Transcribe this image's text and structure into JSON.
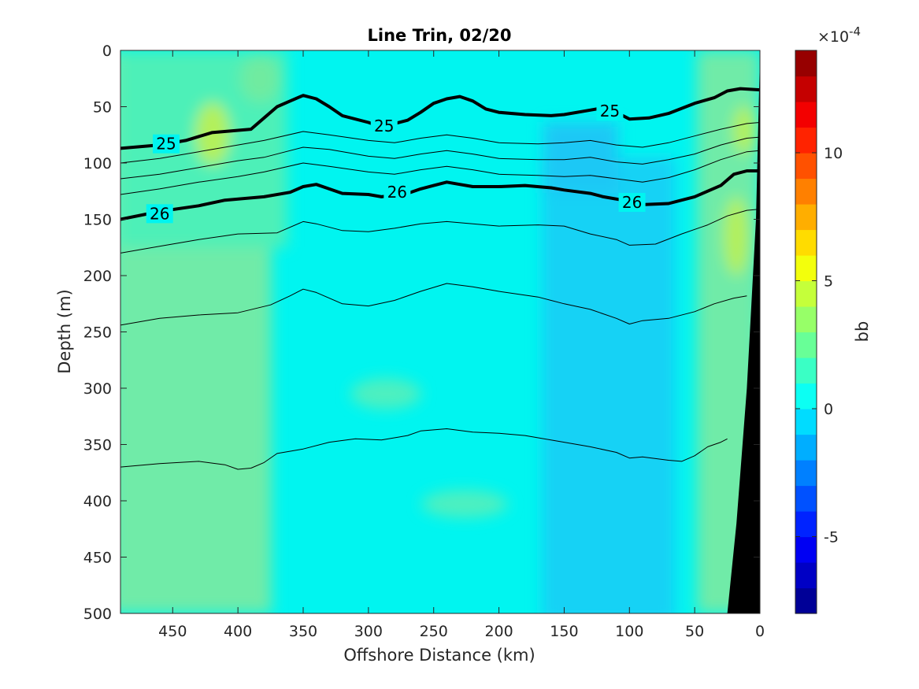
{
  "chart_data": {
    "type": "heatmap",
    "title": "Line Trin, 02/20",
    "xlabel": "Offshore Distance (km)",
    "ylabel": "Depth (m)",
    "x_reversed": true,
    "y_reversed": true,
    "xlim": [
      490,
      0
    ],
    "ylim": [
      0,
      500
    ],
    "xticks": [
      450,
      400,
      350,
      300,
      250,
      200,
      150,
      100,
      50,
      0
    ],
    "yticks": [
      0,
      50,
      100,
      150,
      200,
      250,
      300,
      350,
      400,
      450,
      500
    ],
    "grid": false,
    "colorbar": {
      "label": "bb",
      "exponent_label": "×10",
      "exponent_value": "-4",
      "range": [
        -8,
        14
      ],
      "ticks": [
        -5,
        0,
        5,
        10
      ],
      "levels": 22,
      "colormap": "jet"
    },
    "field_description": "backscatter bb anomaly: ~1-3 (green) offshore 490-370 km, ~0.5-1 (cyan) 370-170 km, ~-0.5 to -1 (light blue) 170-60 km, ~2-4 (green) nearshore 50-0 km; maximum ~4-5 near 420 km at 60-90 m",
    "contour_lines": [
      {
        "label": "25",
        "bold": true,
        "points": [
          [
            490,
            87
          ],
          [
            460,
            84
          ],
          [
            440,
            80
          ],
          [
            420,
            73
          ],
          [
            390,
            70
          ],
          [
            380,
            60
          ],
          [
            370,
            50
          ],
          [
            360,
            45
          ],
          [
            350,
            40
          ],
          [
            340,
            43
          ],
          [
            330,
            50
          ],
          [
            320,
            58
          ],
          [
            300,
            64
          ],
          [
            290,
            68
          ],
          [
            270,
            62
          ],
          [
            260,
            55
          ],
          [
            250,
            47
          ],
          [
            240,
            43
          ],
          [
            230,
            41
          ],
          [
            220,
            45
          ],
          [
            210,
            52
          ],
          [
            200,
            55
          ],
          [
            180,
            57
          ],
          [
            160,
            58
          ],
          [
            150,
            57
          ],
          [
            130,
            53
          ],
          [
            120,
            51
          ],
          [
            110,
            55
          ],
          [
            100,
            61
          ],
          [
            85,
            60
          ],
          [
            70,
            56
          ],
          [
            50,
            47
          ],
          [
            35,
            42
          ],
          [
            25,
            36
          ],
          [
            15,
            34
          ],
          [
            0,
            35
          ]
        ],
        "label_positions": [
          [
            455,
            83
          ],
          [
            288,
            67
          ],
          [
            115,
            54
          ]
        ]
      },
      {
        "label": "26",
        "bold": true,
        "points": [
          [
            490,
            150
          ],
          [
            460,
            143
          ],
          [
            430,
            138
          ],
          [
            410,
            133
          ],
          [
            380,
            130
          ],
          [
            360,
            126
          ],
          [
            350,
            121
          ],
          [
            340,
            119
          ],
          [
            330,
            123
          ],
          [
            320,
            127
          ],
          [
            300,
            128
          ],
          [
            290,
            130
          ],
          [
            270,
            127
          ],
          [
            260,
            123
          ],
          [
            250,
            120
          ],
          [
            240,
            117
          ],
          [
            230,
            119
          ],
          [
            220,
            121
          ],
          [
            200,
            121
          ],
          [
            180,
            120
          ],
          [
            160,
            122
          ],
          [
            150,
            124
          ],
          [
            130,
            127
          ],
          [
            120,
            130
          ],
          [
            105,
            133
          ],
          [
            90,
            137
          ],
          [
            70,
            136
          ],
          [
            50,
            130
          ],
          [
            30,
            120
          ],
          [
            20,
            110
          ],
          [
            10,
            107
          ],
          [
            0,
            107
          ]
        ],
        "label_positions": [
          [
            460,
            145
          ],
          [
            278,
            126
          ],
          [
            98,
            135
          ]
        ]
      },
      {
        "label": "",
        "bold": false,
        "points": [
          [
            490,
            100
          ],
          [
            460,
            96
          ],
          [
            430,
            90
          ],
          [
            400,
            84
          ],
          [
            380,
            80
          ],
          [
            350,
            72
          ],
          [
            330,
            75
          ],
          [
            300,
            80
          ],
          [
            280,
            82
          ],
          [
            260,
            78
          ],
          [
            240,
            75
          ],
          [
            220,
            78
          ],
          [
            200,
            82
          ],
          [
            170,
            83
          ],
          [
            150,
            82
          ],
          [
            130,
            80
          ],
          [
            110,
            84
          ],
          [
            90,
            86
          ],
          [
            70,
            82
          ],
          [
            50,
            76
          ],
          [
            30,
            70
          ],
          [
            10,
            65
          ],
          [
            0,
            64
          ]
        ]
      },
      {
        "label": "",
        "bold": false,
        "points": [
          [
            490,
            114
          ],
          [
            460,
            110
          ],
          [
            430,
            104
          ],
          [
            400,
            98
          ],
          [
            380,
            95
          ],
          [
            350,
            86
          ],
          [
            330,
            88
          ],
          [
            300,
            94
          ],
          [
            280,
            96
          ],
          [
            260,
            92
          ],
          [
            240,
            89
          ],
          [
            220,
            92
          ],
          [
            200,
            96
          ],
          [
            170,
            97
          ],
          [
            150,
            97
          ],
          [
            130,
            95
          ],
          [
            110,
            99
          ],
          [
            90,
            101
          ],
          [
            70,
            97
          ],
          [
            50,
            92
          ],
          [
            30,
            84
          ],
          [
            10,
            78
          ],
          [
            0,
            77
          ]
        ]
      },
      {
        "label": "",
        "bold": false,
        "points": [
          [
            490,
            128
          ],
          [
            460,
            123
          ],
          [
            430,
            117
          ],
          [
            400,
            112
          ],
          [
            380,
            108
          ],
          [
            350,
            100
          ],
          [
            330,
            103
          ],
          [
            300,
            108
          ],
          [
            280,
            110
          ],
          [
            260,
            106
          ],
          [
            240,
            103
          ],
          [
            220,
            106
          ],
          [
            200,
            110
          ],
          [
            170,
            111
          ],
          [
            150,
            112
          ],
          [
            130,
            111
          ],
          [
            110,
            114
          ],
          [
            90,
            117
          ],
          [
            70,
            113
          ],
          [
            50,
            106
          ],
          [
            30,
            97
          ],
          [
            10,
            90
          ],
          [
            0,
            89
          ]
        ]
      },
      {
        "label": "",
        "bold": false,
        "points": [
          [
            490,
            180
          ],
          [
            460,
            174
          ],
          [
            430,
            168
          ],
          [
            400,
            163
          ],
          [
            370,
            162
          ],
          [
            350,
            152
          ],
          [
            340,
            154
          ],
          [
            320,
            160
          ],
          [
            300,
            161
          ],
          [
            280,
            158
          ],
          [
            260,
            154
          ],
          [
            240,
            152
          ],
          [
            220,
            154
          ],
          [
            200,
            156
          ],
          [
            170,
            155
          ],
          [
            150,
            156
          ],
          [
            130,
            163
          ],
          [
            110,
            168
          ],
          [
            100,
            173
          ],
          [
            80,
            172
          ],
          [
            60,
            163
          ],
          [
            40,
            155
          ],
          [
            25,
            147
          ],
          [
            10,
            142
          ],
          [
            0,
            141
          ]
        ]
      },
      {
        "label": "",
        "bold": false,
        "points": [
          [
            490,
            244
          ],
          [
            460,
            238
          ],
          [
            430,
            235
          ],
          [
            400,
            233
          ],
          [
            375,
            226
          ],
          [
            360,
            218
          ],
          [
            350,
            212
          ],
          [
            340,
            215
          ],
          [
            320,
            225
          ],
          [
            300,
            227
          ],
          [
            280,
            222
          ],
          [
            260,
            214
          ],
          [
            240,
            207
          ],
          [
            220,
            210
          ],
          [
            200,
            214
          ],
          [
            170,
            219
          ],
          [
            150,
            225
          ],
          [
            130,
            230
          ],
          [
            110,
            238
          ],
          [
            100,
            243
          ],
          [
            90,
            240
          ],
          [
            70,
            238
          ],
          [
            50,
            232
          ],
          [
            35,
            225
          ],
          [
            20,
            220
          ],
          [
            10,
            218
          ]
        ]
      },
      {
        "label": "",
        "bold": false,
        "points": [
          [
            490,
            370
          ],
          [
            460,
            367
          ],
          [
            430,
            365
          ],
          [
            410,
            368
          ],
          [
            400,
            372
          ],
          [
            390,
            371
          ],
          [
            380,
            366
          ],
          [
            370,
            358
          ],
          [
            350,
            354
          ],
          [
            330,
            348
          ],
          [
            310,
            345
          ],
          [
            290,
            346
          ],
          [
            270,
            342
          ],
          [
            260,
            338
          ],
          [
            240,
            336
          ],
          [
            220,
            339
          ],
          [
            200,
            340
          ],
          [
            180,
            342
          ],
          [
            150,
            348
          ],
          [
            130,
            352
          ],
          [
            110,
            357
          ],
          [
            100,
            362
          ],
          [
            90,
            361
          ],
          [
            70,
            364
          ],
          [
            60,
            365
          ],
          [
            50,
            360
          ],
          [
            40,
            352
          ],
          [
            30,
            348
          ],
          [
            25,
            345
          ]
        ]
      }
    ],
    "seafloor_mask": {
      "color": "#000000",
      "polygon": [
        [
          0,
          5
        ],
        [
          0,
          500
        ],
        [
          25,
          500
        ],
        [
          18,
          420
        ],
        [
          10,
          300
        ],
        [
          3,
          150
        ]
      ]
    }
  }
}
